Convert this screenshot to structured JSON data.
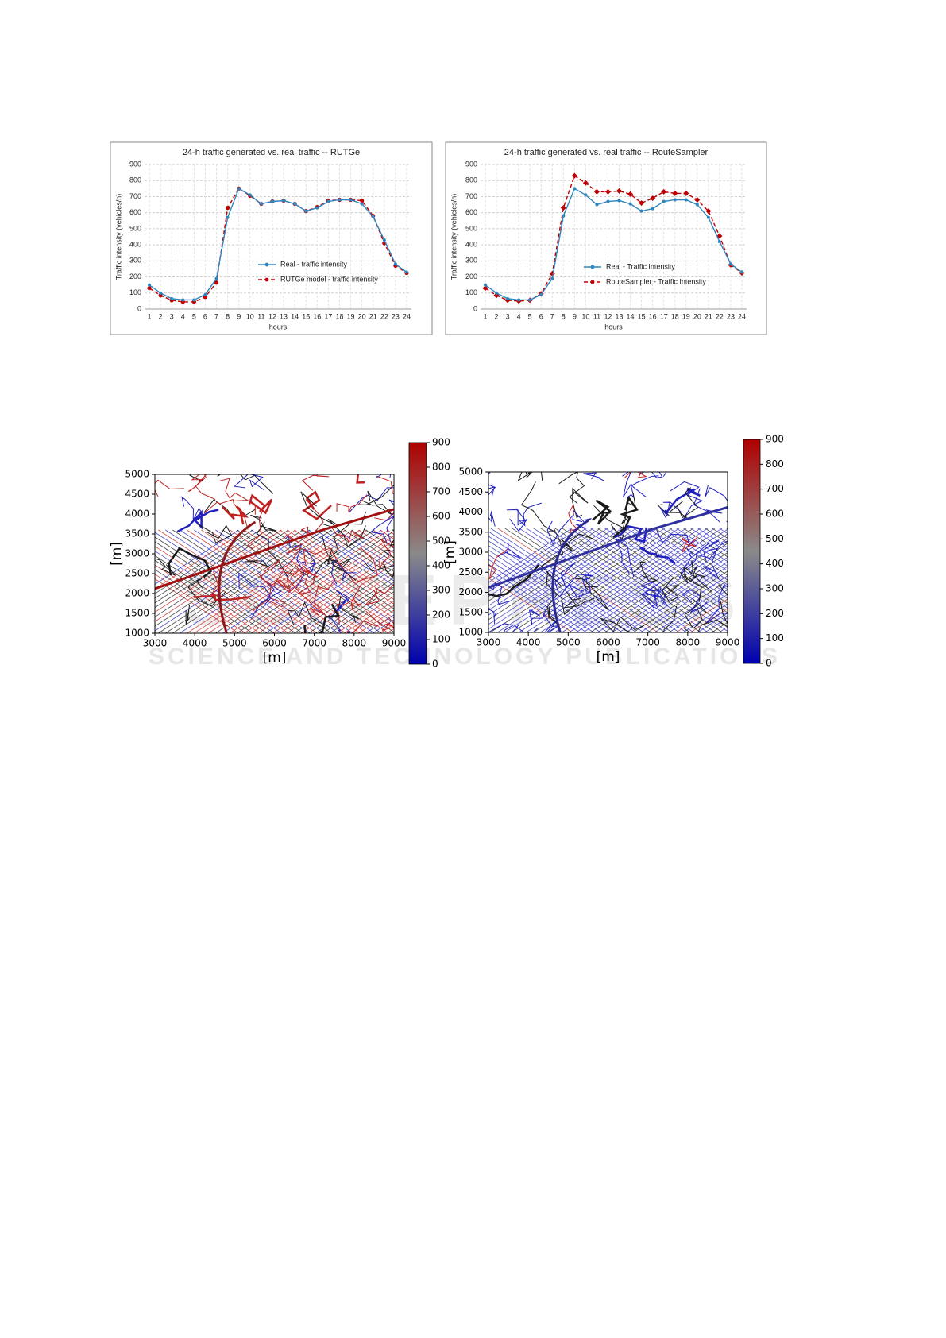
{
  "watermark": {
    "logo": "SCITEPRESS",
    "text": "SCIENCE AND TECHNOLOGY PUBLICATIONS"
  },
  "chart_data": [
    {
      "type": "line",
      "title": "24-h traffic generated vs. real traffic  -- RUTGe",
      "xlabel": "hours",
      "ylabel": "Traffic intensity (vehicles/h)",
      "categories": [
        1,
        2,
        3,
        4,
        5,
        6,
        7,
        8,
        9,
        10,
        11,
        12,
        13,
        14,
        15,
        16,
        17,
        18,
        19,
        20,
        21,
        22,
        23,
        24
      ],
      "ylim": [
        0,
        900
      ],
      "yticks": [
        0,
        100,
        200,
        300,
        400,
        500,
        600,
        700,
        800,
        900
      ],
      "grid": true,
      "series": [
        {
          "name": "Real - traffic intensity",
          "color": "#2e86c1",
          "line_style": "solid",
          "marker": "circle",
          "values": [
            150,
            100,
            65,
            57,
            57,
            90,
            190,
            570,
            750,
            710,
            655,
            670,
            675,
            655,
            610,
            630,
            670,
            680,
            680,
            655,
            575,
            430,
            280,
            230
          ]
        },
        {
          "name": "RUTGe model - traffic intensity",
          "color": "#c00000",
          "line_style": "dashed",
          "marker": "circle",
          "values": [
            130,
            85,
            55,
            45,
            45,
            75,
            165,
            630,
            750,
            705,
            655,
            670,
            675,
            655,
            610,
            635,
            675,
            680,
            680,
            675,
            580,
            410,
            270,
            225
          ]
        }
      ]
    },
    {
      "type": "line",
      "title": "24-h traffic generated vs. real traffic  -- RouteSampler",
      "xlabel": "hours",
      "ylabel": "Traffic intensity (vehicles/h)",
      "categories": [
        1,
        2,
        3,
        4,
        5,
        6,
        7,
        8,
        9,
        10,
        11,
        12,
        13,
        14,
        15,
        16,
        17,
        18,
        19,
        20,
        21,
        22,
        23,
        24
      ],
      "ylim": [
        0,
        900
      ],
      "yticks": [
        0,
        100,
        200,
        300,
        400,
        500,
        600,
        700,
        800,
        900
      ],
      "grid": true,
      "series": [
        {
          "name": "Real - Traffic Intensity",
          "color": "#2e86c1",
          "line_style": "solid",
          "marker": "circle",
          "values": [
            150,
            100,
            65,
            57,
            57,
            90,
            190,
            580,
            750,
            710,
            650,
            670,
            675,
            655,
            610,
            625,
            670,
            680,
            680,
            650,
            570,
            420,
            280,
            230
          ]
        },
        {
          "name": "RouteSampler - Traffic Intensity",
          "color": "#c00000",
          "line_style": "dashed",
          "marker": "diamond",
          "values": [
            130,
            85,
            55,
            50,
            55,
            95,
            220,
            630,
            830,
            785,
            730,
            730,
            735,
            715,
            660,
            690,
            730,
            720,
            720,
            680,
            610,
            455,
            275,
            225
          ]
        }
      ]
    },
    {
      "type": "map",
      "xlabel": "[m]",
      "ylabel": "[m]",
      "xlim": [
        3000,
        9000
      ],
      "xticks": [
        3000,
        4000,
        5000,
        6000,
        7000,
        8000,
        9000
      ],
      "ylim": [
        1000,
        5000
      ],
      "yticks": [
        1000,
        1500,
        2000,
        2500,
        3000,
        3500,
        4000,
        4500,
        5000
      ],
      "colorbar": {
        "lim": [
          0,
          900
        ],
        "ticks": [
          0,
          100,
          200,
          300,
          400,
          500,
          600,
          700,
          800,
          900
        ],
        "colors": [
          "#0000b0",
          "#8a8a8a",
          "#b00000"
        ]
      }
    },
    {
      "type": "map",
      "xlabel": "[m]",
      "ylabel": "[m]",
      "xlim": [
        3000,
        9000
      ],
      "xticks": [
        3000,
        4000,
        5000,
        6000,
        7000,
        8000,
        9000
      ],
      "ylim": [
        1000,
        5000
      ],
      "yticks": [
        1000,
        1500,
        2000,
        2500,
        3000,
        3500,
        4000,
        4500,
        5000
      ],
      "colorbar": {
        "lim": [
          0,
          900
        ],
        "ticks": [
          0,
          100,
          200,
          300,
          400,
          500,
          600,
          700,
          800,
          900
        ],
        "colors": [
          "#0000b0",
          "#8a8a8a",
          "#b00000"
        ]
      }
    }
  ]
}
